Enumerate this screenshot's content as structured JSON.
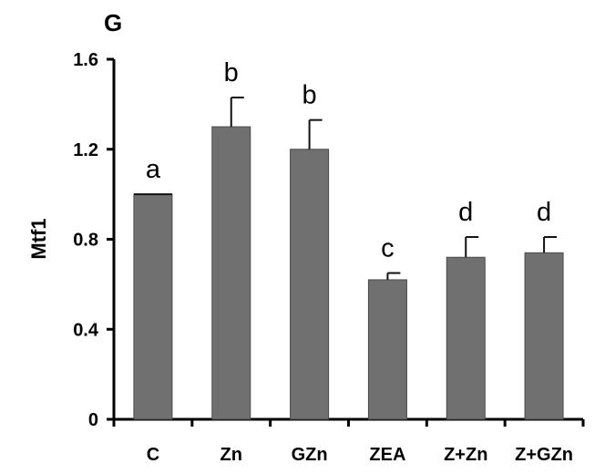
{
  "chart_data": {
    "type": "bar",
    "panel_label": "G",
    "title": "",
    "xlabel": "",
    "ylabel": "Mtf1",
    "ylim": [
      0,
      1.6
    ],
    "yticks": [
      "0",
      "0.4",
      "0.8",
      "1.2",
      "1.6"
    ],
    "ytick_values": [
      0,
      0.4,
      0.8,
      1.2,
      1.6
    ],
    "categories": [
      "C",
      "Zn",
      "GZn",
      "ZEA",
      "Z+Zn",
      "Z+GZn"
    ],
    "values": [
      1.0,
      1.3,
      1.2,
      0.62,
      0.72,
      0.74
    ],
    "errors": [
      0.0,
      0.13,
      0.13,
      0.03,
      0.09,
      0.07
    ],
    "significance_labels": [
      "a",
      "b",
      "b",
      "c",
      "d",
      "d"
    ],
    "bar_color": "#707070",
    "grid": false,
    "legend": "none"
  }
}
